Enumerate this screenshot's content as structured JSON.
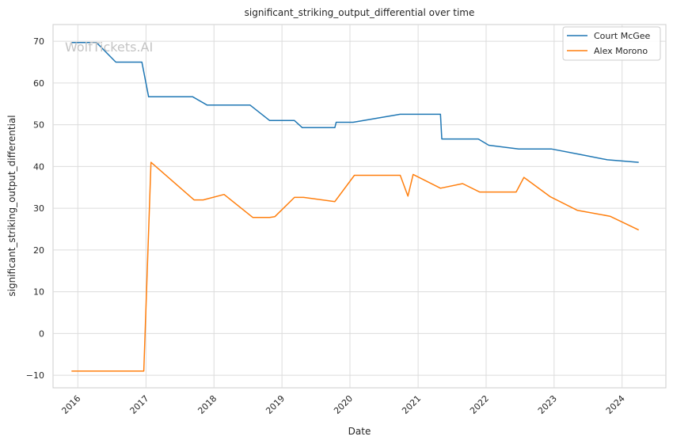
{
  "chart_data": {
    "type": "line",
    "title": "significant_striking_output_differential over time",
    "xlabel": "Date",
    "ylabel": "significant_striking_output_differential",
    "watermark": "WolfTickets.AI",
    "x_ticks": [
      "2016",
      "2017",
      "2018",
      "2019",
      "2020",
      "2021",
      "2022",
      "2023",
      "2024"
    ],
    "y_ticks": [
      -10,
      0,
      10,
      20,
      30,
      40,
      50,
      60,
      70
    ],
    "xlim": [
      "2015-08-21",
      "2024-08-23"
    ],
    "ylim": [
      -13,
      74
    ],
    "grid": true,
    "legend_position": "top-right",
    "series": [
      {
        "name": "Court McGee",
        "color": "#1f77b4",
        "points": [
          [
            "2015-11-28",
            69.7
          ],
          [
            "2016-04-10",
            69.7
          ],
          [
            "2016-07-23",
            65.0
          ],
          [
            "2016-12-10",
            65.0
          ],
          [
            "2017-01-15",
            56.7
          ],
          [
            "2017-09-09",
            56.7
          ],
          [
            "2017-11-25",
            54.7
          ],
          [
            "2018-07-14",
            54.7
          ],
          [
            "2018-10-27",
            51.0
          ],
          [
            "2019-03-09",
            51.0
          ],
          [
            "2019-04-20",
            49.3
          ],
          [
            "2019-10-12",
            49.3
          ],
          [
            "2019-10-19",
            50.6
          ],
          [
            "2020-01-18",
            50.6
          ],
          [
            "2020-09-26",
            52.5
          ],
          [
            "2021-05-01",
            52.5
          ],
          [
            "2021-05-08",
            46.6
          ],
          [
            "2021-11-20",
            46.6
          ],
          [
            "2022-01-15",
            45.1
          ],
          [
            "2022-06-25",
            44.2
          ],
          [
            "2022-12-17",
            44.2
          ],
          [
            "2023-05-20",
            42.9
          ],
          [
            "2023-10-14",
            41.6
          ],
          [
            "2024-03-30",
            41.0
          ]
        ]
      },
      {
        "name": "Alex Morono",
        "color": "#ff7f0e",
        "points": [
          [
            "2015-11-28",
            -9.0
          ],
          [
            "2016-12-20",
            -9.0
          ],
          [
            "2017-01-28",
            41.0
          ],
          [
            "2017-09-16",
            32.0
          ],
          [
            "2017-11-04",
            32.0
          ],
          [
            "2018-02-24",
            33.3
          ],
          [
            "2018-07-28",
            27.8
          ],
          [
            "2018-10-27",
            27.8
          ],
          [
            "2018-11-24",
            28.0
          ],
          [
            "2019-03-09",
            32.6
          ],
          [
            "2019-04-27",
            32.6
          ],
          [
            "2019-10-12",
            31.6
          ],
          [
            "2020-01-25",
            37.9
          ],
          [
            "2020-09-27",
            37.9
          ],
          [
            "2020-11-07",
            32.9
          ],
          [
            "2020-12-05",
            38.1
          ],
          [
            "2021-05-01",
            34.8
          ],
          [
            "2021-08-28",
            35.9
          ],
          [
            "2021-11-27",
            33.9
          ],
          [
            "2022-06-11",
            33.9
          ],
          [
            "2022-07-23",
            37.4
          ],
          [
            "2022-12-10",
            32.8
          ],
          [
            "2023-05-06",
            29.5
          ],
          [
            "2023-10-28",
            28.1
          ],
          [
            "2024-03-30",
            24.8
          ]
        ]
      }
    ]
  }
}
